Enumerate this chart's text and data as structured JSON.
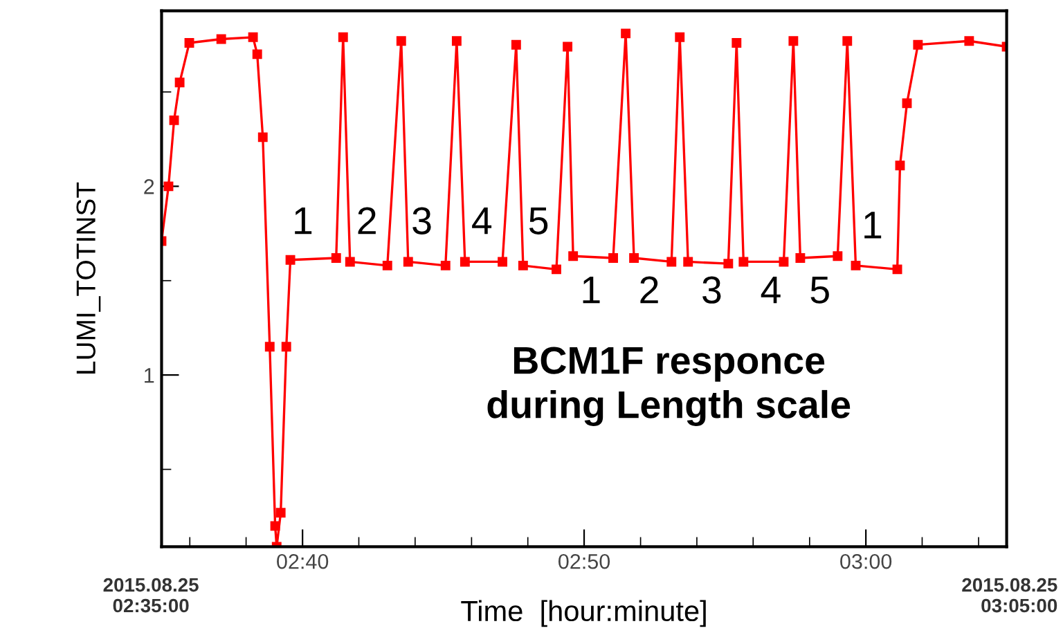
{
  "chart_data": {
    "type": "line",
    "xlabel": "Time  [hour:minute]",
    "ylabel": "LUMI_TOTINST",
    "x": [
      2.5833,
      2.5874,
      2.5907,
      2.594,
      2.5997,
      2.6186,
      2.6374,
      2.6399,
      2.6432,
      2.6473,
      2.6505,
      2.6514,
      2.6538,
      2.6571,
      2.6595,
      2.6866,
      2.6907,
      2.6948,
      2.7169,
      2.7251,
      2.7292,
      2.7513,
      2.7579,
      2.7628,
      2.785,
      2.7931,
      2.7972,
      2.8169,
      2.8235,
      2.8268,
      2.8505,
      2.8579,
      2.8628,
      2.885,
      2.8899,
      2.8948,
      2.9186,
      2.9235,
      2.9276,
      2.9514,
      2.9571,
      2.9612,
      2.9833,
      2.989,
      2.994,
      3.0186,
      3.0202,
      3.0243,
      3.0308,
      3.0611,
      3.0833
    ],
    "series": [
      {
        "color": "#ff0000",
        "values": [
          1.71,
          2.0,
          2.35,
          2.55,
          2.76,
          2.78,
          2.79,
          2.7,
          2.26,
          1.15,
          0.2,
          0.09,
          0.27,
          1.15,
          1.61,
          1.62,
          2.79,
          1.6,
          1.58,
          2.77,
          1.6,
          1.58,
          2.77,
          1.6,
          1.6,
          2.75,
          1.58,
          1.56,
          2.74,
          1.63,
          1.62,
          2.81,
          1.62,
          1.6,
          2.79,
          1.6,
          1.59,
          2.76,
          1.6,
          1.6,
          2.77,
          1.62,
          1.63,
          2.77,
          1.58,
          1.56,
          2.11,
          2.44,
          2.75,
          2.77,
          2.74
        ]
      }
    ],
    "xlim": [
      2.5833,
      3.0833
    ],
    "xticks": [
      {
        "value": 2.6,
        "label": null
      },
      {
        "value": 2.6333,
        "label": null
      },
      {
        "value": 2.6667,
        "label": "02:40"
      },
      {
        "value": 2.7,
        "label": null
      },
      {
        "value": 2.7333,
        "label": null
      },
      {
        "value": 2.7667,
        "label": null
      },
      {
        "value": 2.8,
        "label": null
      },
      {
        "value": 2.8333,
        "label": "02:50"
      },
      {
        "value": 2.8667,
        "label": null
      },
      {
        "value": 2.9,
        "label": null
      },
      {
        "value": 2.9333,
        "label": null
      },
      {
        "value": 2.9667,
        "label": null
      },
      {
        "value": 3.0,
        "label": "03:00"
      },
      {
        "value": 3.0333,
        "label": null
      },
      {
        "value": 3.0667,
        "label": null
      }
    ],
    "ylim": [
      0.09,
      2.93
    ],
    "yticks": [
      {
        "value": 0.5,
        "label": null
      },
      1,
      {
        "value": 1.5,
        "label": null
      },
      2,
      {
        "value": 2.5,
        "label": null
      }
    ],
    "grid": false,
    "marker": "square",
    "line_style": "solid",
    "annotations": [
      "BCM1F responce\nduring Length scale",
      "2015.08.25\n02:35:00",
      "2015.08.25\n03:05:00",
      "1",
      "2",
      "3",
      "4",
      "5",
      "1",
      "2",
      "3",
      "4",
      "5",
      "1"
    ]
  }
}
